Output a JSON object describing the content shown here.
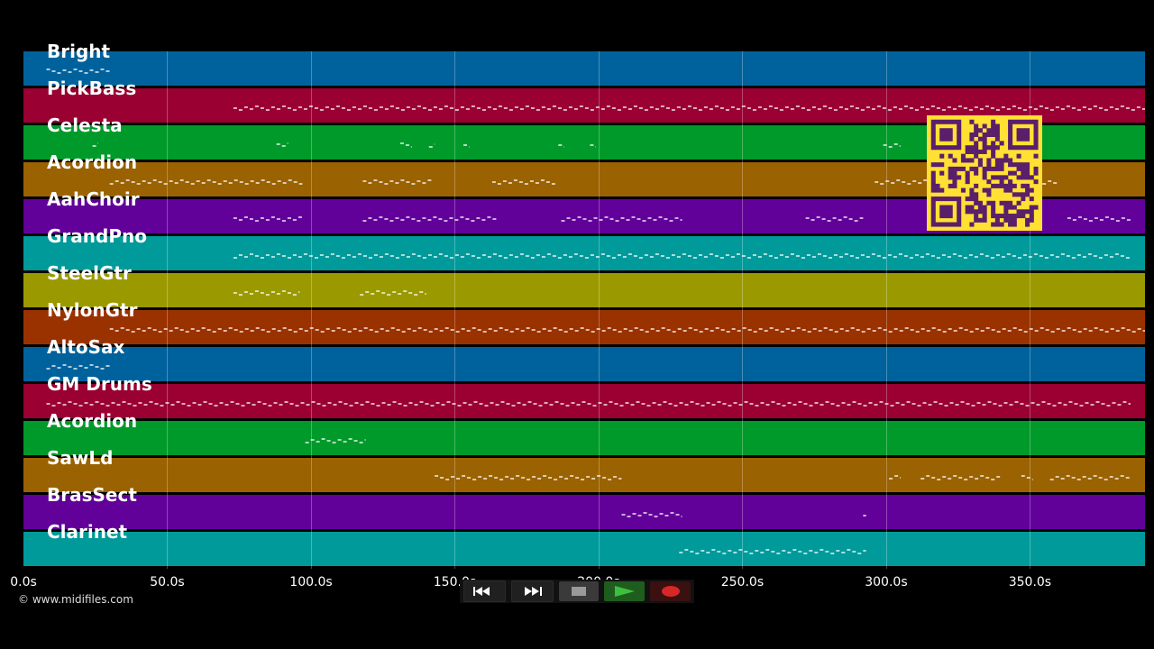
{
  "tracks": [
    {
      "name": "Bright",
      "color": "#00629c"
    },
    {
      "name": "PickBass",
      "color": "#9a0032"
    },
    {
      "name": "Celesta",
      "color": "#009a2a"
    },
    {
      "name": "Acordion",
      "color": "#9a6200"
    },
    {
      "name": "AahChoir",
      "color": "#62009a"
    },
    {
      "name": "GrandPno",
      "color": "#009a9a"
    },
    {
      "name": "SteelGtr",
      "color": "#9a9a00"
    },
    {
      "name": "NylonGtr",
      "color": "#9a3200"
    },
    {
      "name": "AltoSax",
      "color": "#00629c"
    },
    {
      "name": "GM Drums",
      "color": "#9a0032"
    },
    {
      "name": "Acordion",
      "color": "#009a2a"
    },
    {
      "name": "SawLd",
      "color": "#9a6200"
    },
    {
      "name": "BrasSect",
      "color": "#62009a"
    },
    {
      "name": "Clarinet",
      "color": "#009a9a"
    }
  ],
  "timeline": {
    "ticks": [
      "0.0s",
      "50.0s",
      "100.0s",
      "150.0s",
      "200.0s",
      "250.0s",
      "300.0s",
      "350.0s"
    ],
    "tick_values": [
      0,
      50,
      100,
      150,
      200,
      250,
      300,
      350
    ],
    "max_seconds": 390
  },
  "footer": {
    "copyright": "© www.midifiles.com"
  },
  "transport": {
    "rewind_icon": "rewind-icon",
    "forward_icon": "fast-forward-icon",
    "stop_icon": "stop-icon",
    "play_icon": "play-icon",
    "record_icon": "record-icon"
  },
  "qr_code": {
    "icon": "qr-code-icon"
  },
  "note_activity": [
    [
      [
        8,
        30
      ]
    ],
    [
      [
        73,
        390
      ]
    ],
    [
      [
        24,
        26
      ],
      [
        88,
        92
      ],
      [
        131,
        135
      ],
      [
        141,
        143
      ],
      [
        153,
        155
      ],
      [
        186,
        188
      ],
      [
        197,
        199
      ],
      [
        299,
        305
      ]
    ],
    [
      [
        30,
        97
      ],
      [
        118,
        142
      ],
      [
        163,
        185
      ],
      [
        296,
        360
      ]
    ],
    [
      [
        73,
        97
      ],
      [
        118,
        165
      ],
      [
        187,
        229
      ],
      [
        272,
        292
      ],
      [
        363,
        385
      ]
    ],
    [
      [
        73,
        385
      ]
    ],
    [
      [
        73,
        96
      ],
      [
        117,
        140
      ]
    ],
    [
      [
        30,
        390
      ]
    ],
    [
      [
        8,
        30
      ]
    ],
    [
      [
        8,
        385
      ]
    ],
    [
      [
        98,
        119
      ]
    ],
    [
      [
        143,
        208
      ],
      [
        301,
        305
      ],
      [
        312,
        340
      ],
      [
        347,
        351
      ],
      [
        357,
        385
      ]
    ],
    [
      [
        208,
        229
      ],
      [
        292,
        293
      ]
    ],
    [
      [
        228,
        293
      ]
    ]
  ]
}
